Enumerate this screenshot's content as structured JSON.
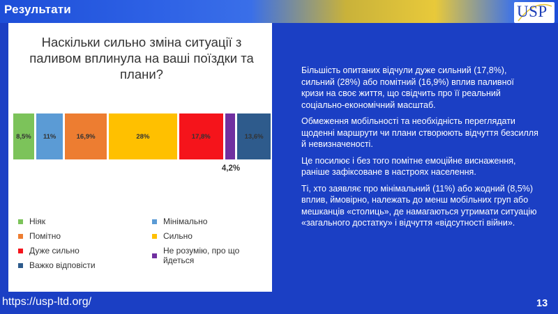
{
  "header": {
    "title": "Результати",
    "logo_text": "USP"
  },
  "chart": {
    "title": "Наскільки сильно зміна ситуації з паливом вплинула на ваші поїздки та плани?"
  },
  "chart_data": {
    "type": "bar",
    "orientation": "horizontal-stacked-100",
    "title": "Наскільки сильно зміна ситуації з паливом вплинула на ваші поїздки та плани?",
    "series": [
      {
        "name": "Ніяк",
        "value": 8.5,
        "label": "8,5%",
        "color": "#7cc35a"
      },
      {
        "name": "Мінімально",
        "value": 11,
        "label": "11%",
        "color": "#5b9bd5"
      },
      {
        "name": "Помітно",
        "value": 16.9,
        "label": "16,9%",
        "color": "#ed7d31"
      },
      {
        "name": "Сильно",
        "value": 28,
        "label": "28%",
        "color": "#ffc000"
      },
      {
        "name": "Дуже сильно",
        "value": 17.8,
        "label": "17,8%",
        "color": "#f5141b"
      },
      {
        "name": "Не розумію, про що йдеться",
        "value": 4.2,
        "label": "4,2%",
        "color": "#7030a0"
      },
      {
        "name": "Важко відповісти",
        "value": 13.6,
        "label": "13,6%",
        "color": "#2e5b8c"
      }
    ],
    "legend_position": "bottom"
  },
  "text": {
    "p1": "Більшість опитаних відчули дуже сильний (17,8%), сильний (28%) або помітний (16,9%) вплив паливної кризи на своє життя, що свідчить про її реальний соціально-економічний масштаб.",
    "p2": "Обмеження мобільності та необхідність переглядати щоденні маршрути чи плани створюють відчуття безсилля й невизначеності.",
    "p3": "Це посилює і без того помітне емоційне виснаження, раніше зафіксоване в настроях населення.",
    "p4": "Ті, хто заявляє про мінімальний (11%) або жодний (8,5%) вплив, ймовірно, належать до менш мобільних груп або мешканців «столиць», де намагаються утримати ситуацію «загального достатку» і відчуття «відсутності війни»."
  },
  "footer": {
    "url": "https://usp-ltd.org/",
    "page": "13"
  }
}
